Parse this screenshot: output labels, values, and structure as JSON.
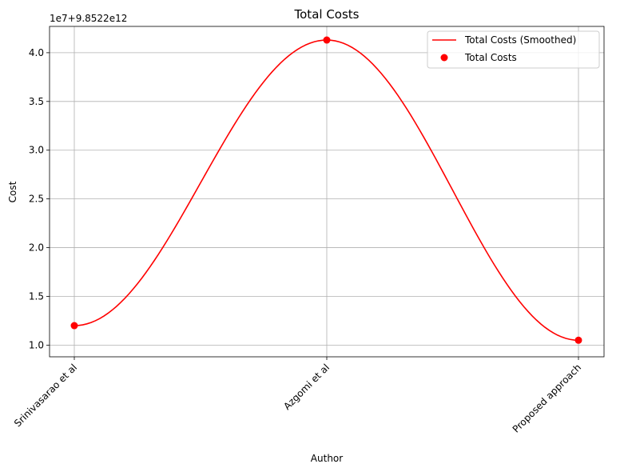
{
  "chart_data": {
    "type": "line",
    "title": "Total Costs",
    "xlabel": "Author",
    "ylabel": "Cost",
    "offset_text": "1e7+9.8522e12",
    "categories": [
      "Srinivasarao et al",
      "Azgomi et al",
      "Proposed approach"
    ],
    "yticks": [
      "1.0",
      "1.5",
      "2.0",
      "2.5",
      "3.0",
      "3.5",
      "4.0"
    ],
    "ylim": [
      0.88,
      4.27
    ],
    "grid": true,
    "legend_position": "top-right",
    "series": [
      {
        "name": "Total Costs (Smoothed)",
        "kind": "line",
        "color": "#ff0000",
        "values": [
          1.2,
          4.13,
          1.05
        ]
      },
      {
        "name": "Total Costs",
        "kind": "scatter",
        "color": "#ff0000",
        "values": [
          1.2,
          4.13,
          1.05
        ]
      }
    ]
  }
}
